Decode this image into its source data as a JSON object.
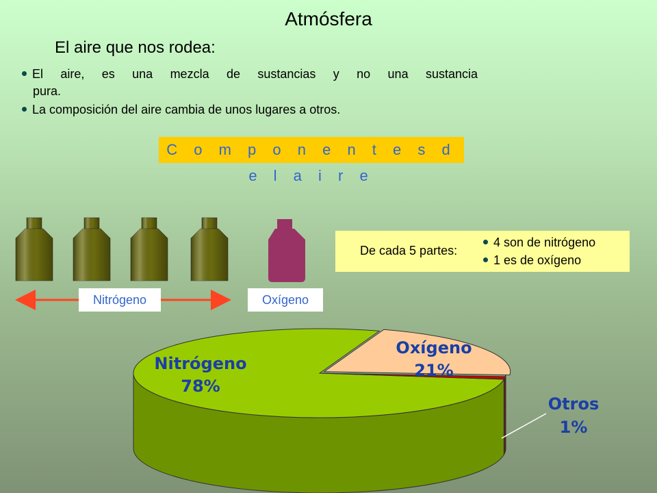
{
  "page": {
    "title": "Atmósfera",
    "subtitle": "El aire que nos rodea:",
    "bullets": [
      {
        "line1": "El aire, es una mezcla de sustancias y no una sustancia",
        "line2": "pura."
      },
      {
        "line1": "La composición del aire cambia de unos lugares a otros."
      }
    ],
    "components_banner": "C o m p o n e n t e s   d e l   a i r e"
  },
  "parts": {
    "label": "De cada 5 partes:",
    "items": [
      "4 son de nitrógeno",
      "1 es de oxígeno"
    ]
  },
  "bottles": {
    "nitrogen_count": 4,
    "oxygen_count": 1,
    "nitrogen_label": "Nitrógeno",
    "oxygen_label": "Oxígeno"
  },
  "colors": {
    "nitrogen_bottle": "#6b6b10",
    "oxygen_bottle": "#993366",
    "banner": "#ffcc00",
    "banner_text": "#3366cc",
    "arrow": "#ff4422"
  },
  "chart_data": {
    "type": "pie",
    "style": "3d",
    "title": "",
    "slices": [
      {
        "name": "Nitrógeno",
        "value": 78,
        "display": "78%",
        "color": "#99cc00"
      },
      {
        "name": "Oxígeno",
        "value": 21,
        "display": "21%",
        "color": "#ffcc99"
      },
      {
        "name": "Otros",
        "value": 1,
        "display": "1%",
        "color": "#cc0000"
      }
    ]
  }
}
